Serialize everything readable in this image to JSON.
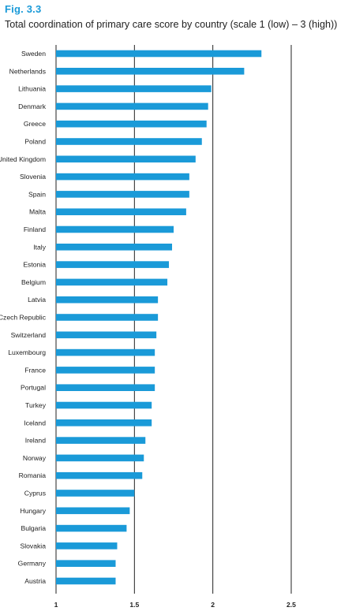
{
  "figure": {
    "label": "Fig. 3.3",
    "title": "Total coordination of primary care score by country (scale 1 (low) – 3 (high))"
  },
  "colors": {
    "bar": "#1a9ad8",
    "label": "#1a9ad8",
    "gridline": "#222222"
  },
  "chart_data": {
    "type": "bar",
    "orientation": "horizontal",
    "title": "Total coordination of primary care score by country (scale 1 (low) – 3 (high))",
    "xlim": [
      1,
      2.5
    ],
    "xticks": [
      "1",
      "1.5",
      "2",
      "2.5"
    ],
    "xtick_values": [
      1,
      1.5,
      2,
      2.5
    ],
    "grid": "vertical",
    "categories": [
      "Sweden",
      "Netherlands",
      "Lithuania",
      "Denmark",
      "Greece",
      "Poland",
      "United Kingdom",
      "Slovenia",
      "Spain",
      "Malta",
      "Finland",
      "Italy",
      "Estonia",
      "Belgium",
      "Latvia",
      "Czech Republic",
      "Switzerland",
      "Luxembourg",
      "France",
      "Portugal",
      "Turkey",
      "Iceland",
      "Ireland",
      "Norway",
      "Romania",
      "Cyprus",
      "Hungary",
      "Bulgaria",
      "Slovakia",
      "Germany",
      "Austria"
    ],
    "values": [
      2.31,
      2.2,
      1.99,
      1.97,
      1.96,
      1.93,
      1.89,
      1.85,
      1.85,
      1.83,
      1.75,
      1.74,
      1.72,
      1.71,
      1.65,
      1.65,
      1.64,
      1.63,
      1.63,
      1.63,
      1.61,
      1.61,
      1.57,
      1.56,
      1.55,
      1.5,
      1.47,
      1.45,
      1.39,
      1.38,
      1.38
    ]
  }
}
